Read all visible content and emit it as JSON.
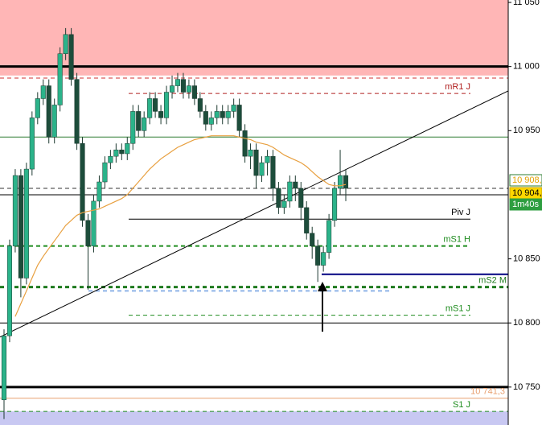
{
  "chart_data": {
    "type": "candlestick",
    "ylim": [
      10720.4,
      11051.9
    ],
    "yticks": [
      {
        "value": 11050,
        "label": "11 050"
      },
      {
        "value": 11000,
        "label": "11 000"
      },
      {
        "value": 10950,
        "label": "10 950"
      },
      {
        "value": 10850,
        "label": "10 850"
      },
      {
        "value": 10800,
        "label": "10 800"
      },
      {
        "value": 10750,
        "label": "10 750"
      }
    ],
    "up_color": "#2bb38a",
    "down_color": "#1d4d3b",
    "open": [
      10740,
      10790,
      10860,
      10915,
      10835,
      10920,
      10960,
      10975,
      10985,
      10945,
      10970,
      11010,
      11025,
      10990,
      10940,
      10880,
      10860,
      10895,
      10910,
      10925,
      10930,
      10935,
      10932,
      10940,
      10965,
      10950,
      10960,
      10975,
      10965,
      10960,
      10980,
      10985,
      10990,
      10980,
      10985,
      10975,
      10965,
      10955,
      10960,
      10965,
      10960,
      10965,
      10970,
      10950,
      10930,
      10935,
      10915,
      10925,
      10930,
      10905,
      10890,
      10895,
      10910,
      10905,
      10890,
      10870,
      10860,
      10845,
      10855,
      10880,
      10905,
      10915
    ],
    "high": [
      10795,
      10865,
      10920,
      10920,
      10925,
      10965,
      10980,
      10990,
      10990,
      10975,
      11015,
      11030,
      11030,
      10995,
      10945,
      10885,
      10900,
      10915,
      10930,
      10935,
      10940,
      10940,
      10945,
      10970,
      10970,
      10965,
      10980,
      10980,
      10970,
      10985,
      10993,
      10995,
      10995,
      10990,
      10990,
      10980,
      10970,
      10965,
      10970,
      10970,
      10970,
      10975,
      10975,
      10955,
      10940,
      10940,
      10930,
      10935,
      10935,
      10910,
      10900,
      10915,
      10915,
      10910,
      10895,
      10875,
      10865,
      10860,
      10885,
      10910,
      10935,
      10920
    ],
    "low": [
      10725,
      10785,
      10855,
      10820,
      10830,
      10915,
      10955,
      10970,
      10940,
      10940,
      10965,
      11005,
      10985,
      10935,
      10875,
      10826,
      10855,
      10890,
      10905,
      10920,
      10925,
      10927,
      10927,
      10935,
      10945,
      10945,
      10955,
      10960,
      10955,
      10955,
      10975,
      10980,
      10975,
      10975,
      10970,
      10960,
      10950,
      10950,
      10955,
      10955,
      10955,
      10960,
      10945,
      10925,
      10920,
      10905,
      10910,
      10915,
      10895,
      10885,
      10885,
      10890,
      10895,
      10880,
      10865,
      10850,
      10832,
      10840,
      10850,
      10875,
      10900,
      10895
    ],
    "close": [
      10790,
      10860,
      10915,
      10835,
      10920,
      10960,
      10975,
      10985,
      10945,
      10970,
      11010,
      11025,
      10990,
      10940,
      10880,
      10860,
      10895,
      10910,
      10925,
      10930,
      10935,
      10932,
      10940,
      10965,
      10950,
      10960,
      10975,
      10965,
      10960,
      10980,
      10985,
      10990,
      10980,
      10985,
      10975,
      10965,
      10955,
      10960,
      10965,
      10960,
      10965,
      10970,
      10950,
      10930,
      10935,
      10915,
      10925,
      10930,
      10905,
      10890,
      10895,
      10910,
      10905,
      10890,
      10870,
      10860,
      10845,
      10855,
      10880,
      10905,
      10915,
      10905
    ],
    "moving_average": {
      "color": "#e8a040",
      "values": [
        null,
        null,
        10805,
        10815,
        10825,
        10835,
        10845,
        10852,
        10858,
        10864,
        10870,
        10876,
        10880,
        10884,
        10886,
        10887,
        10888,
        10889,
        10891,
        10893,
        10895,
        10897,
        10900,
        10905,
        10910,
        10915,
        10920,
        10924,
        10928,
        10931,
        10934,
        10937,
        10939,
        10941,
        10943,
        10944,
        10945,
        10946,
        10946,
        10946,
        10946,
        10946,
        10945,
        10944,
        10943,
        10941,
        10940,
        10939,
        10937,
        10934,
        10931,
        10929,
        10927,
        10925,
        10922,
        10918,
        10914,
        10911,
        10908,
        10907,
        10907,
        10908
      ]
    },
    "zones": [
      {
        "from": 10993,
        "to": 11051.9,
        "color": "#ffb6b6"
      },
      {
        "from": 10720.4,
        "to": 10731,
        "color": "#c8c8f2"
      }
    ],
    "levels": [
      {
        "value": 11000,
        "color": "#000000",
        "width": 3,
        "dash": false
      },
      {
        "value": 10991,
        "color": "#d03030",
        "width": 1,
        "dash": true
      },
      {
        "value": 10979,
        "color": "#b02020",
        "width": 1,
        "dash": true,
        "label": "mR1 J"
      },
      {
        "value": 10945,
        "color": "#2e7d32",
        "width": 1,
        "dash": false
      },
      {
        "value": 10905,
        "color": "#333333",
        "width": 1,
        "dash": true
      },
      {
        "value": 10900,
        "color": "#000000",
        "width": 1,
        "dash": false
      },
      {
        "value": 10881,
        "color": "#000000",
        "width": 1,
        "dash": false,
        "label": "Piv J"
      },
      {
        "value": 10860,
        "color": "#1e8c1e",
        "width": 2,
        "dash": true,
        "label": "mS1 H"
      },
      {
        "value": 10838,
        "color": "#000080",
        "width": 2,
        "dash": false
      },
      {
        "value": 10828,
        "color": "#1e7a1e",
        "width": 3,
        "dash": true,
        "label": "mS2 M"
      },
      {
        "value": 10825,
        "color": "#8fb4e8",
        "width": 2,
        "dash": true
      },
      {
        "value": 10806,
        "color": "#1e8c1e",
        "width": 1,
        "dash": true,
        "label": "mS1 J"
      },
      {
        "value": 10800,
        "color": "#000000",
        "width": 1,
        "dash": false
      },
      {
        "value": 10750,
        "color": "#000000",
        "width": 3,
        "dash": false
      },
      {
        "value": 10741.3,
        "color": "#e8a070",
        "width": 1,
        "dash": false,
        "label": "10 741,3"
      },
      {
        "value": 10731,
        "color": "#1e8c1e",
        "width": 1,
        "dash": true,
        "label": "S1 J"
      }
    ],
    "trendline": {
      "start": 10789,
      "end": 10981,
      "color": "#000000"
    },
    "tags": [
      {
        "value": 10908,
        "label": "10 908,",
        "bg": "#ffffff",
        "fg": "#e0a000",
        "border": "#2e7d32"
      },
      {
        "value": 10904,
        "label": "10 904,",
        "bg": "#ffd700",
        "fg": "#000000",
        "border": "#c0a000"
      },
      {
        "value": 10895,
        "label": "1m40s",
        "bg": "#2e9e40",
        "fg": "#ffffff",
        "border": "#2e9e40"
      }
    ]
  }
}
